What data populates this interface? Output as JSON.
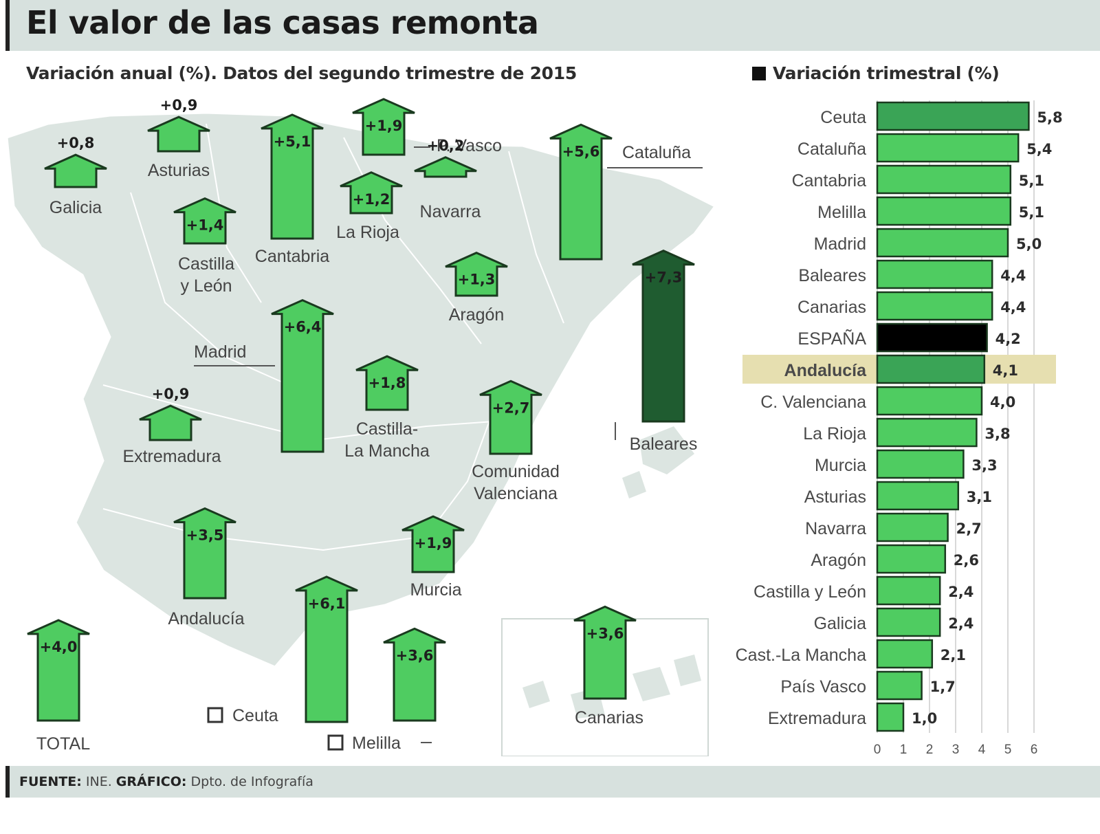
{
  "header": {
    "title": "El valor de las casas remonta"
  },
  "map": {
    "subtitle": "Variación anual (%). Datos del segundo trimestre de 2015",
    "legend_ceuta": "Ceuta",
    "legend_melilla": "Melilla"
  },
  "bars": {
    "title": "Variación trimestral (%)"
  },
  "footer": {
    "source_label": "FUENTE:",
    "source_value": "INE.",
    "graphic_label": "GRÁFICO:",
    "graphic_value": "Dpto. de Infografía"
  },
  "colors": {
    "green": "#4fcc61",
    "dark_green": "#1f5c30",
    "mid_green": "#3aa456",
    "black": "#000000",
    "highlight": "#e6dfb0",
    "map_land": "#dce5e1",
    "outline": "#1a3a1f"
  },
  "chart_data": [
    {
      "type": "bar",
      "title": "Variación anual (%). Datos del segundo trimestre de 2015",
      "series": [
        {
          "name": "Galicia",
          "label": "Galicia",
          "value": 0.8,
          "display": "+0,8"
        },
        {
          "name": "Asturias",
          "label": "Asturias",
          "value": 0.9,
          "display": "+0,9"
        },
        {
          "name": "Cantabria",
          "label": "Cantabria",
          "value": 5.1,
          "display": "+5,1"
        },
        {
          "name": "País Vasco",
          "label": "P. Vasco",
          "value": 1.9,
          "display": "+1,9"
        },
        {
          "name": "Navarra",
          "label": "Navarra",
          "value": 0.2,
          "display": "+0,2"
        },
        {
          "name": "Cataluña",
          "label": "Cataluña",
          "value": 5.6,
          "display": "+5,6"
        },
        {
          "name": "La Rioja",
          "label": "La Rioja",
          "value": 1.2,
          "display": "+1,2"
        },
        {
          "name": "Castilla y León",
          "label": "Castilla y León",
          "value": 1.4,
          "display": "+1,4"
        },
        {
          "name": "Aragón",
          "label": "Aragón",
          "value": 1.3,
          "display": "+1,3"
        },
        {
          "name": "Madrid",
          "label": "Madrid",
          "value": 6.4,
          "display": "+6,4"
        },
        {
          "name": "Baleares",
          "label": "Baleares",
          "value": 7.3,
          "display": "+7,3"
        },
        {
          "name": "Extremadura",
          "label": "Extremadura",
          "value": 0.9,
          "display": "+0,9"
        },
        {
          "name": "Castilla-La Mancha",
          "label": "Castilla-La Mancha",
          "value": 1.8,
          "display": "+1,8"
        },
        {
          "name": "Comunidad Valenciana",
          "label": "Comunidad Valenciana",
          "value": 2.7,
          "display": "+2,7"
        },
        {
          "name": "Andalucía",
          "label": "Andalucía",
          "value": 3.5,
          "display": "+3,5"
        },
        {
          "name": "Murcia",
          "label": "Murcia",
          "value": 1.9,
          "display": "+1,9"
        },
        {
          "name": "Canarias",
          "label": "Canarias",
          "value": 3.6,
          "display": "+3,6"
        },
        {
          "name": "Ceuta",
          "label": "Ceuta",
          "value": 6.1,
          "display": "+6,1"
        },
        {
          "name": "Melilla",
          "label": "Melilla",
          "value": 3.6,
          "display": "+3,6"
        },
        {
          "name": "TOTAL",
          "label": "TOTAL",
          "value": 4.0,
          "display": "+4,0"
        }
      ]
    },
    {
      "type": "bar",
      "orientation": "horizontal",
      "title": "Variación trimestral (%)",
      "xlim": [
        0,
        6
      ],
      "ticks": [
        0,
        1,
        2,
        3,
        4,
        5,
        6
      ],
      "grid": true,
      "categories": [
        "Ceuta",
        "Cataluña",
        "Cantabria",
        "Melilla",
        "Madrid",
        "Baleares",
        "Canarias",
        "ESPAÑA",
        "Andalucía",
        "C. Valenciana",
        "La Rioja",
        "Murcia",
        "Asturias",
        "Navarra",
        "Aragón",
        "Castilla y León",
        "Galicia",
        "Cast.-La Mancha",
        "País Vasco",
        "Extremadura"
      ],
      "values": [
        5.8,
        5.4,
        5.1,
        5.1,
        5.0,
        4.4,
        4.4,
        4.2,
        4.1,
        4.0,
        3.8,
        3.3,
        3.1,
        2.7,
        2.6,
        2.4,
        2.4,
        2.1,
        1.7,
        1.0
      ],
      "value_labels": [
        "5,8",
        "5,4",
        "5,1",
        "5,1",
        "5,0",
        "4,4",
        "4,4",
        "4,2",
        "4,1",
        "4,0",
        "3,8",
        "3,3",
        "3,1",
        "2,7",
        "2,6",
        "2,4",
        "2,4",
        "2,1",
        "1,7",
        "1,0"
      ],
      "highlight": "Andalucía",
      "emphasis": "ESPAÑA"
    }
  ]
}
